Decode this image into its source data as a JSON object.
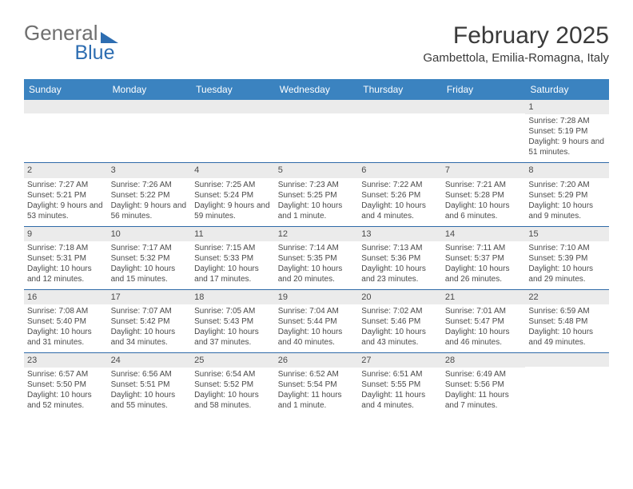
{
  "logo": {
    "line1": "General",
    "line2": "Blue"
  },
  "title": "February 2025",
  "location": "Gambettola, Emilia-Romagna, Italy",
  "day_headers": [
    "Sunday",
    "Monday",
    "Tuesday",
    "Wednesday",
    "Thursday",
    "Friday",
    "Saturday"
  ],
  "colors": {
    "header_bg": "#3b83c0",
    "logo_blue": "#2d6db1",
    "logo_gray": "#6f6f6f",
    "rule": "#2f6aa8",
    "daynum_bg": "#ebebeb",
    "text": "#4a4a4a"
  },
  "weeks": [
    [
      {
        "empty": true
      },
      {
        "empty": true
      },
      {
        "empty": true
      },
      {
        "empty": true
      },
      {
        "empty": true
      },
      {
        "empty": true
      },
      {
        "day": "1",
        "sunrise": "Sunrise: 7:28 AM",
        "sunset": "Sunset: 5:19 PM",
        "daylight": "Daylight: 9 hours and 51 minutes."
      }
    ],
    [
      {
        "day": "2",
        "sunrise": "Sunrise: 7:27 AM",
        "sunset": "Sunset: 5:21 PM",
        "daylight": "Daylight: 9 hours and 53 minutes."
      },
      {
        "day": "3",
        "sunrise": "Sunrise: 7:26 AM",
        "sunset": "Sunset: 5:22 PM",
        "daylight": "Daylight: 9 hours and 56 minutes."
      },
      {
        "day": "4",
        "sunrise": "Sunrise: 7:25 AM",
        "sunset": "Sunset: 5:24 PM",
        "daylight": "Daylight: 9 hours and 59 minutes."
      },
      {
        "day": "5",
        "sunrise": "Sunrise: 7:23 AM",
        "sunset": "Sunset: 5:25 PM",
        "daylight": "Daylight: 10 hours and 1 minute."
      },
      {
        "day": "6",
        "sunrise": "Sunrise: 7:22 AM",
        "sunset": "Sunset: 5:26 PM",
        "daylight": "Daylight: 10 hours and 4 minutes."
      },
      {
        "day": "7",
        "sunrise": "Sunrise: 7:21 AM",
        "sunset": "Sunset: 5:28 PM",
        "daylight": "Daylight: 10 hours and 6 minutes."
      },
      {
        "day": "8",
        "sunrise": "Sunrise: 7:20 AM",
        "sunset": "Sunset: 5:29 PM",
        "daylight": "Daylight: 10 hours and 9 minutes."
      }
    ],
    [
      {
        "day": "9",
        "sunrise": "Sunrise: 7:18 AM",
        "sunset": "Sunset: 5:31 PM",
        "daylight": "Daylight: 10 hours and 12 minutes."
      },
      {
        "day": "10",
        "sunrise": "Sunrise: 7:17 AM",
        "sunset": "Sunset: 5:32 PM",
        "daylight": "Daylight: 10 hours and 15 minutes."
      },
      {
        "day": "11",
        "sunrise": "Sunrise: 7:15 AM",
        "sunset": "Sunset: 5:33 PM",
        "daylight": "Daylight: 10 hours and 17 minutes."
      },
      {
        "day": "12",
        "sunrise": "Sunrise: 7:14 AM",
        "sunset": "Sunset: 5:35 PM",
        "daylight": "Daylight: 10 hours and 20 minutes."
      },
      {
        "day": "13",
        "sunrise": "Sunrise: 7:13 AM",
        "sunset": "Sunset: 5:36 PM",
        "daylight": "Daylight: 10 hours and 23 minutes."
      },
      {
        "day": "14",
        "sunrise": "Sunrise: 7:11 AM",
        "sunset": "Sunset: 5:37 PM",
        "daylight": "Daylight: 10 hours and 26 minutes."
      },
      {
        "day": "15",
        "sunrise": "Sunrise: 7:10 AM",
        "sunset": "Sunset: 5:39 PM",
        "daylight": "Daylight: 10 hours and 29 minutes."
      }
    ],
    [
      {
        "day": "16",
        "sunrise": "Sunrise: 7:08 AM",
        "sunset": "Sunset: 5:40 PM",
        "daylight": "Daylight: 10 hours and 31 minutes."
      },
      {
        "day": "17",
        "sunrise": "Sunrise: 7:07 AM",
        "sunset": "Sunset: 5:42 PM",
        "daylight": "Daylight: 10 hours and 34 minutes."
      },
      {
        "day": "18",
        "sunrise": "Sunrise: 7:05 AM",
        "sunset": "Sunset: 5:43 PM",
        "daylight": "Daylight: 10 hours and 37 minutes."
      },
      {
        "day": "19",
        "sunrise": "Sunrise: 7:04 AM",
        "sunset": "Sunset: 5:44 PM",
        "daylight": "Daylight: 10 hours and 40 minutes."
      },
      {
        "day": "20",
        "sunrise": "Sunrise: 7:02 AM",
        "sunset": "Sunset: 5:46 PM",
        "daylight": "Daylight: 10 hours and 43 minutes."
      },
      {
        "day": "21",
        "sunrise": "Sunrise: 7:01 AM",
        "sunset": "Sunset: 5:47 PM",
        "daylight": "Daylight: 10 hours and 46 minutes."
      },
      {
        "day": "22",
        "sunrise": "Sunrise: 6:59 AM",
        "sunset": "Sunset: 5:48 PM",
        "daylight": "Daylight: 10 hours and 49 minutes."
      }
    ],
    [
      {
        "day": "23",
        "sunrise": "Sunrise: 6:57 AM",
        "sunset": "Sunset: 5:50 PM",
        "daylight": "Daylight: 10 hours and 52 minutes."
      },
      {
        "day": "24",
        "sunrise": "Sunrise: 6:56 AM",
        "sunset": "Sunset: 5:51 PM",
        "daylight": "Daylight: 10 hours and 55 minutes."
      },
      {
        "day": "25",
        "sunrise": "Sunrise: 6:54 AM",
        "sunset": "Sunset: 5:52 PM",
        "daylight": "Daylight: 10 hours and 58 minutes."
      },
      {
        "day": "26",
        "sunrise": "Sunrise: 6:52 AM",
        "sunset": "Sunset: 5:54 PM",
        "daylight": "Daylight: 11 hours and 1 minute."
      },
      {
        "day": "27",
        "sunrise": "Sunrise: 6:51 AM",
        "sunset": "Sunset: 5:55 PM",
        "daylight": "Daylight: 11 hours and 4 minutes."
      },
      {
        "day": "28",
        "sunrise": "Sunrise: 6:49 AM",
        "sunset": "Sunset: 5:56 PM",
        "daylight": "Daylight: 11 hours and 7 minutes."
      },
      {
        "empty": true
      }
    ]
  ]
}
